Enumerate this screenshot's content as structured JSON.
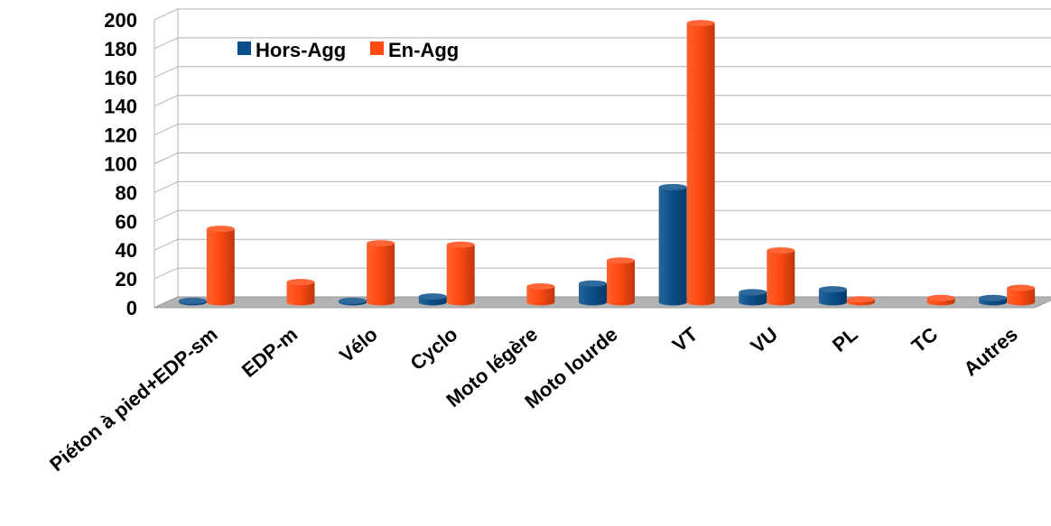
{
  "chart_data": {
    "type": "bar",
    "categories": [
      "Piéton à pied+EDP-sm",
      "EDP-m",
      "Vélo",
      "Cyclo",
      "Moto légère",
      "Moto lourde",
      "VT",
      "VU",
      "PL",
      "TC",
      "Autres"
    ],
    "series": [
      {
        "name": "Hors-Agg",
        "color": "#0b4f8a",
        "values": [
          1,
          0,
          1,
          4,
          0,
          13,
          80,
          7,
          9,
          0,
          3
        ]
      },
      {
        "name": "En-Agg",
        "color": "#ff4a12",
        "values": [
          51,
          14,
          41,
          40,
          11,
          29,
          194,
          36,
          2,
          3,
          10
        ]
      }
    ],
    "ylim": [
      0,
      200
    ],
    "yticks": [
      "0",
      "20",
      "40",
      "60",
      "80",
      "100",
      "120",
      "140",
      "160",
      "180",
      "200"
    ],
    "grid": true,
    "legend_position": "top-left",
    "style": "3d-cylinder"
  }
}
